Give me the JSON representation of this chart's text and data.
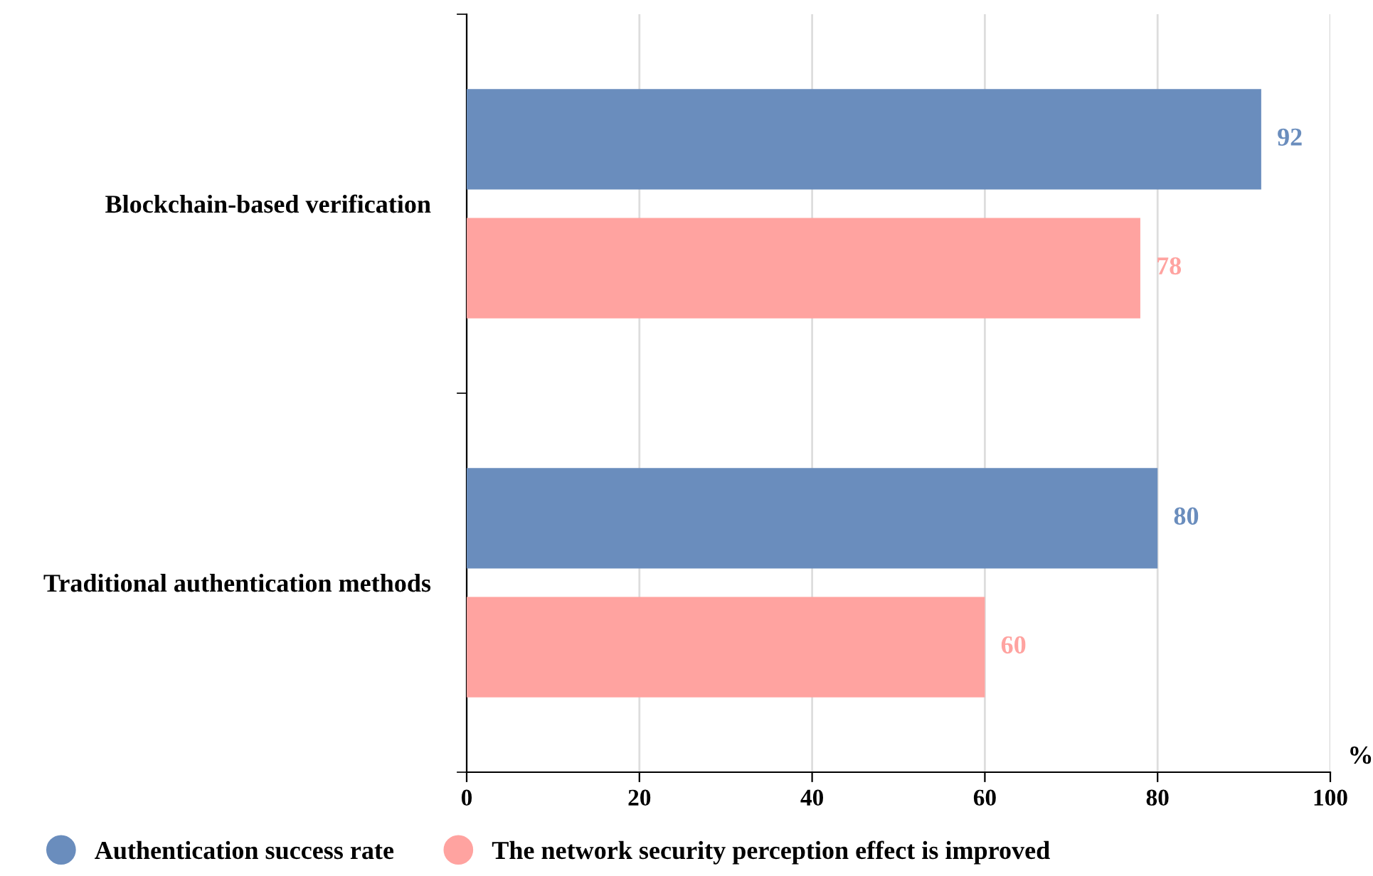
{
  "chart_data": {
    "type": "bar",
    "orientation": "horizontal",
    "xlabel": "%",
    "categories": [
      "Blockchain-based verification",
      "Traditional authentication methods"
    ],
    "series": [
      {
        "name": "Authentication success rate",
        "color": "#6a8dbd",
        "values": [
          92,
          80
        ]
      },
      {
        "name": "The network security perception effect is improved",
        "color": "#ffa3a0",
        "values": [
          78,
          60
        ]
      }
    ],
    "xlim": [
      0,
      100
    ],
    "xticks": [
      0,
      20,
      40,
      60,
      80,
      100
    ],
    "grid": "x",
    "legend": "bottom",
    "data_labels": true,
    "marker": "circle"
  }
}
